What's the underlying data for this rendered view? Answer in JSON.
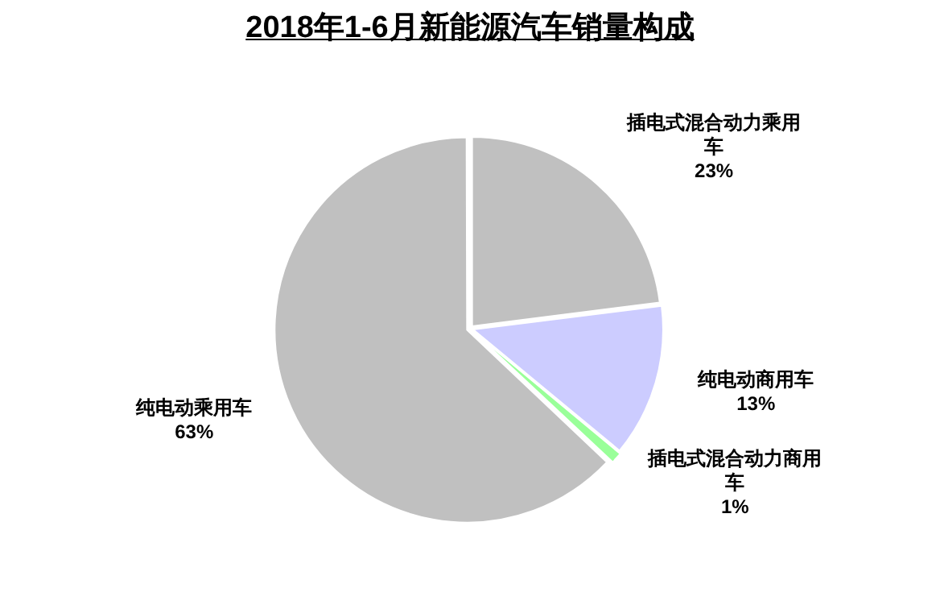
{
  "chart_data": {
    "type": "pie",
    "title": "2018年1-6月新能源汽车销量构成",
    "categories": [
      "插电式混合动力乘用车",
      "纯电动商用车",
      "插电式混合动力商用车",
      "纯电动乘用车"
    ],
    "values": [
      23,
      13,
      1,
      63
    ],
    "colors": [
      "#c0c0c0",
      "#ccccff",
      "#99ff99",
      "#c0c0c0"
    ],
    "value_labels": [
      "23%",
      "13%",
      "1%",
      "63%"
    ],
    "legend": false
  }
}
